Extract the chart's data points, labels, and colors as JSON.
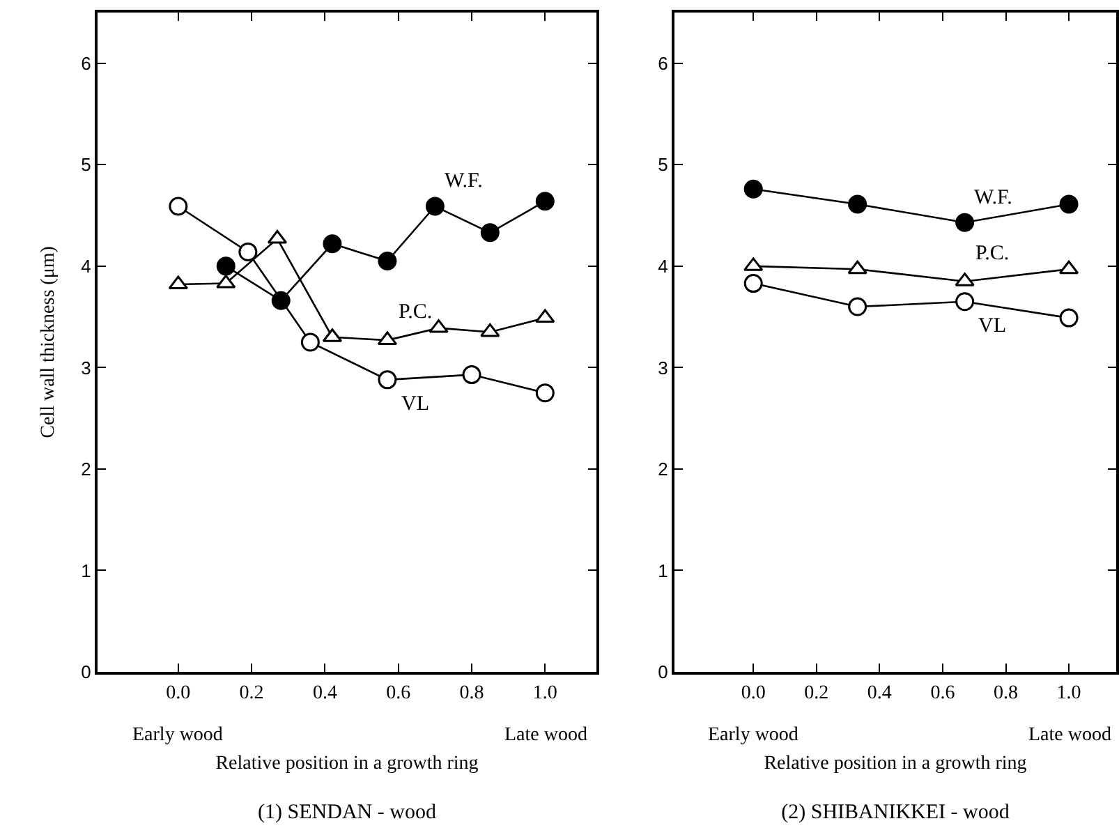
{
  "chart_data": [
    {
      "type": "line",
      "title": "(1) SENDAN - wood",
      "xlabel": "Relative position in a growth ring",
      "ylabel": "Cell wall thickness (μm)",
      "annotations": [
        "Early wood",
        "Late wood"
      ],
      "xlim": [
        -0.22,
        1.14
      ],
      "xticks": [
        {
          "value": 0,
          "label": "0.0"
        },
        {
          "value": 0.2,
          "label": "0.2"
        },
        {
          "value": 0.4,
          "label": "0.4"
        },
        {
          "value": 0.6,
          "label": "0.6"
        },
        {
          "value": 0.8,
          "label": "0.8"
        },
        {
          "value": 1,
          "label": "1.0"
        }
      ],
      "ylim": [
        0,
        6.5
      ],
      "yticks": [
        0,
        1,
        2,
        3,
        4,
        5,
        6
      ],
      "grid": false,
      "legend": false,
      "line_style": "solid",
      "series": [
        {
          "name": "W.F.",
          "color": "#000000",
          "marker": "circle",
          "x": [
            0.13,
            0.28,
            0.42,
            0.57,
            0.7,
            0.85,
            1.0
          ],
          "values": [
            4.0,
            3.66,
            4.22,
            4.05,
            4.59,
            4.33,
            4.64
          ]
        },
        {
          "name": "P.C.",
          "color": "#000000",
          "marker": "triangle",
          "x": [
            0.0,
            0.13,
            0.27,
            0.42,
            0.57,
            0.71,
            0.85,
            1.0
          ],
          "values": [
            3.82,
            3.83,
            4.27,
            3.3,
            3.27,
            3.39,
            3.35,
            3.49
          ]
        },
        {
          "name": "VL",
          "color": "#000000",
          "marker": "circle",
          "x": [
            0.0,
            0.19,
            0.36,
            0.57,
            0.8,
            1.0
          ],
          "values": [
            4.59,
            4.14,
            3.25,
            2.88,
            2.93,
            2.75
          ]
        }
      ]
    },
    {
      "type": "line",
      "title": "(2) SHIBANIKKEI - wood",
      "xlabel": "Relative position in a growth ring",
      "annotations": [
        "Early wood",
        "Late wood"
      ],
      "xlim": [
        -0.25,
        1.15
      ],
      "xticks": [
        {
          "value": 0,
          "label": "0.0"
        },
        {
          "value": 0.2,
          "label": "0.2"
        },
        {
          "value": 0.4,
          "label": "0.4"
        },
        {
          "value": 0.6,
          "label": "0.6"
        },
        {
          "value": 0.8,
          "label": "0.8"
        },
        {
          "value": 1,
          "label": "1.0"
        }
      ],
      "ylim": [
        0,
        6.5
      ],
      "yticks": [
        0,
        1,
        2,
        3,
        4,
        5,
        6
      ],
      "grid": false,
      "legend": false,
      "line_style": "solid",
      "series": [
        {
          "name": "W.F.",
          "color": "#000000",
          "marker": "circle",
          "x": [
            0.0,
            0.33,
            0.67,
            1.0
          ],
          "values": [
            4.76,
            4.61,
            4.43,
            4.61
          ]
        },
        {
          "name": "P.C.",
          "color": "#000000",
          "marker": "triangle",
          "x": [
            0.0,
            0.33,
            0.67,
            1.0
          ],
          "values": [
            4.0,
            3.97,
            3.85,
            3.97
          ]
        },
        {
          "name": "VL",
          "color": "#000000",
          "marker": "circle",
          "x": [
            0.0,
            0.33,
            0.67,
            1.0
          ],
          "values": [
            3.83,
            3.6,
            3.65,
            3.49
          ]
        }
      ]
    }
  ]
}
